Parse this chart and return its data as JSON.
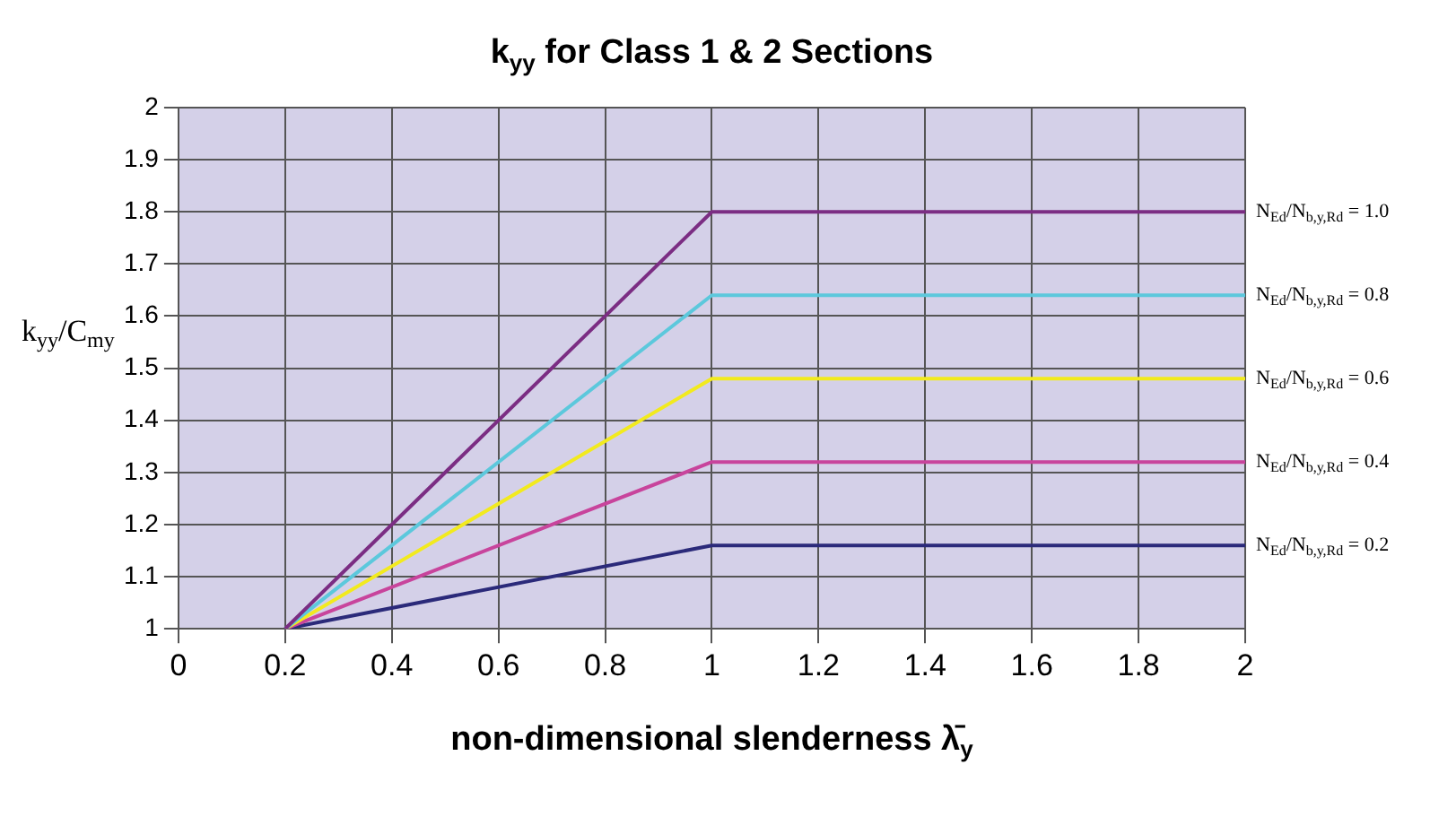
{
  "chart_data": {
    "type": "line",
    "title": "k$_{yy}$ for Class 1 & 2 Sections",
    "xlabel": "non-dimensional slenderness λ̄$_{y}$",
    "ylabel": "k$_{yy}$/C$_{my}$",
    "xlim": [
      0,
      2
    ],
    "xticks": [
      0,
      0.2,
      0.4,
      0.6,
      0.8,
      1,
      1.2,
      1.4,
      1.6,
      1.8,
      2
    ],
    "ylim": [
      1,
      2
    ],
    "yticks": [
      1,
      1.1,
      1.2,
      1.3,
      1.4,
      1.5,
      1.6,
      1.7,
      1.8,
      1.9,
      2
    ],
    "grid": true,
    "legend": false,
    "marker": "none",
    "line_style": "solid",
    "series": [
      {
        "name": "N$_{Ed}$/N$_{b,y,Rd}$ = 1.0",
        "color": "#7b2d83",
        "x": [
          0.2,
          1,
          2
        ],
        "values": [
          1,
          1.8,
          1.8
        ]
      },
      {
        "name": "N$_{Ed}$/N$_{b,y,Rd}$ = 0.8",
        "color": "#5cc8dc",
        "x": [
          0.2,
          1,
          2
        ],
        "values": [
          1,
          1.64,
          1.64
        ]
      },
      {
        "name": "N$_{Ed}$/N$_{b,y,Rd}$ = 0.6",
        "color": "#f2ea1e",
        "x": [
          0.2,
          1,
          2
        ],
        "values": [
          1,
          1.48,
          1.48
        ]
      },
      {
        "name": "N$_{Ed}$/N$_{b,y,Rd}$ = 0.4",
        "color": "#c8449c",
        "x": [
          0.2,
          1,
          2
        ],
        "values": [
          1,
          1.32,
          1.32
        ]
      },
      {
        "name": "N$_{Ed}$/N$_{b,y,Rd}$ = 0.2",
        "color": "#2b2a7a",
        "x": [
          0.2,
          1,
          2
        ],
        "values": [
          1,
          1.16,
          1.16
        ]
      }
    ]
  }
}
